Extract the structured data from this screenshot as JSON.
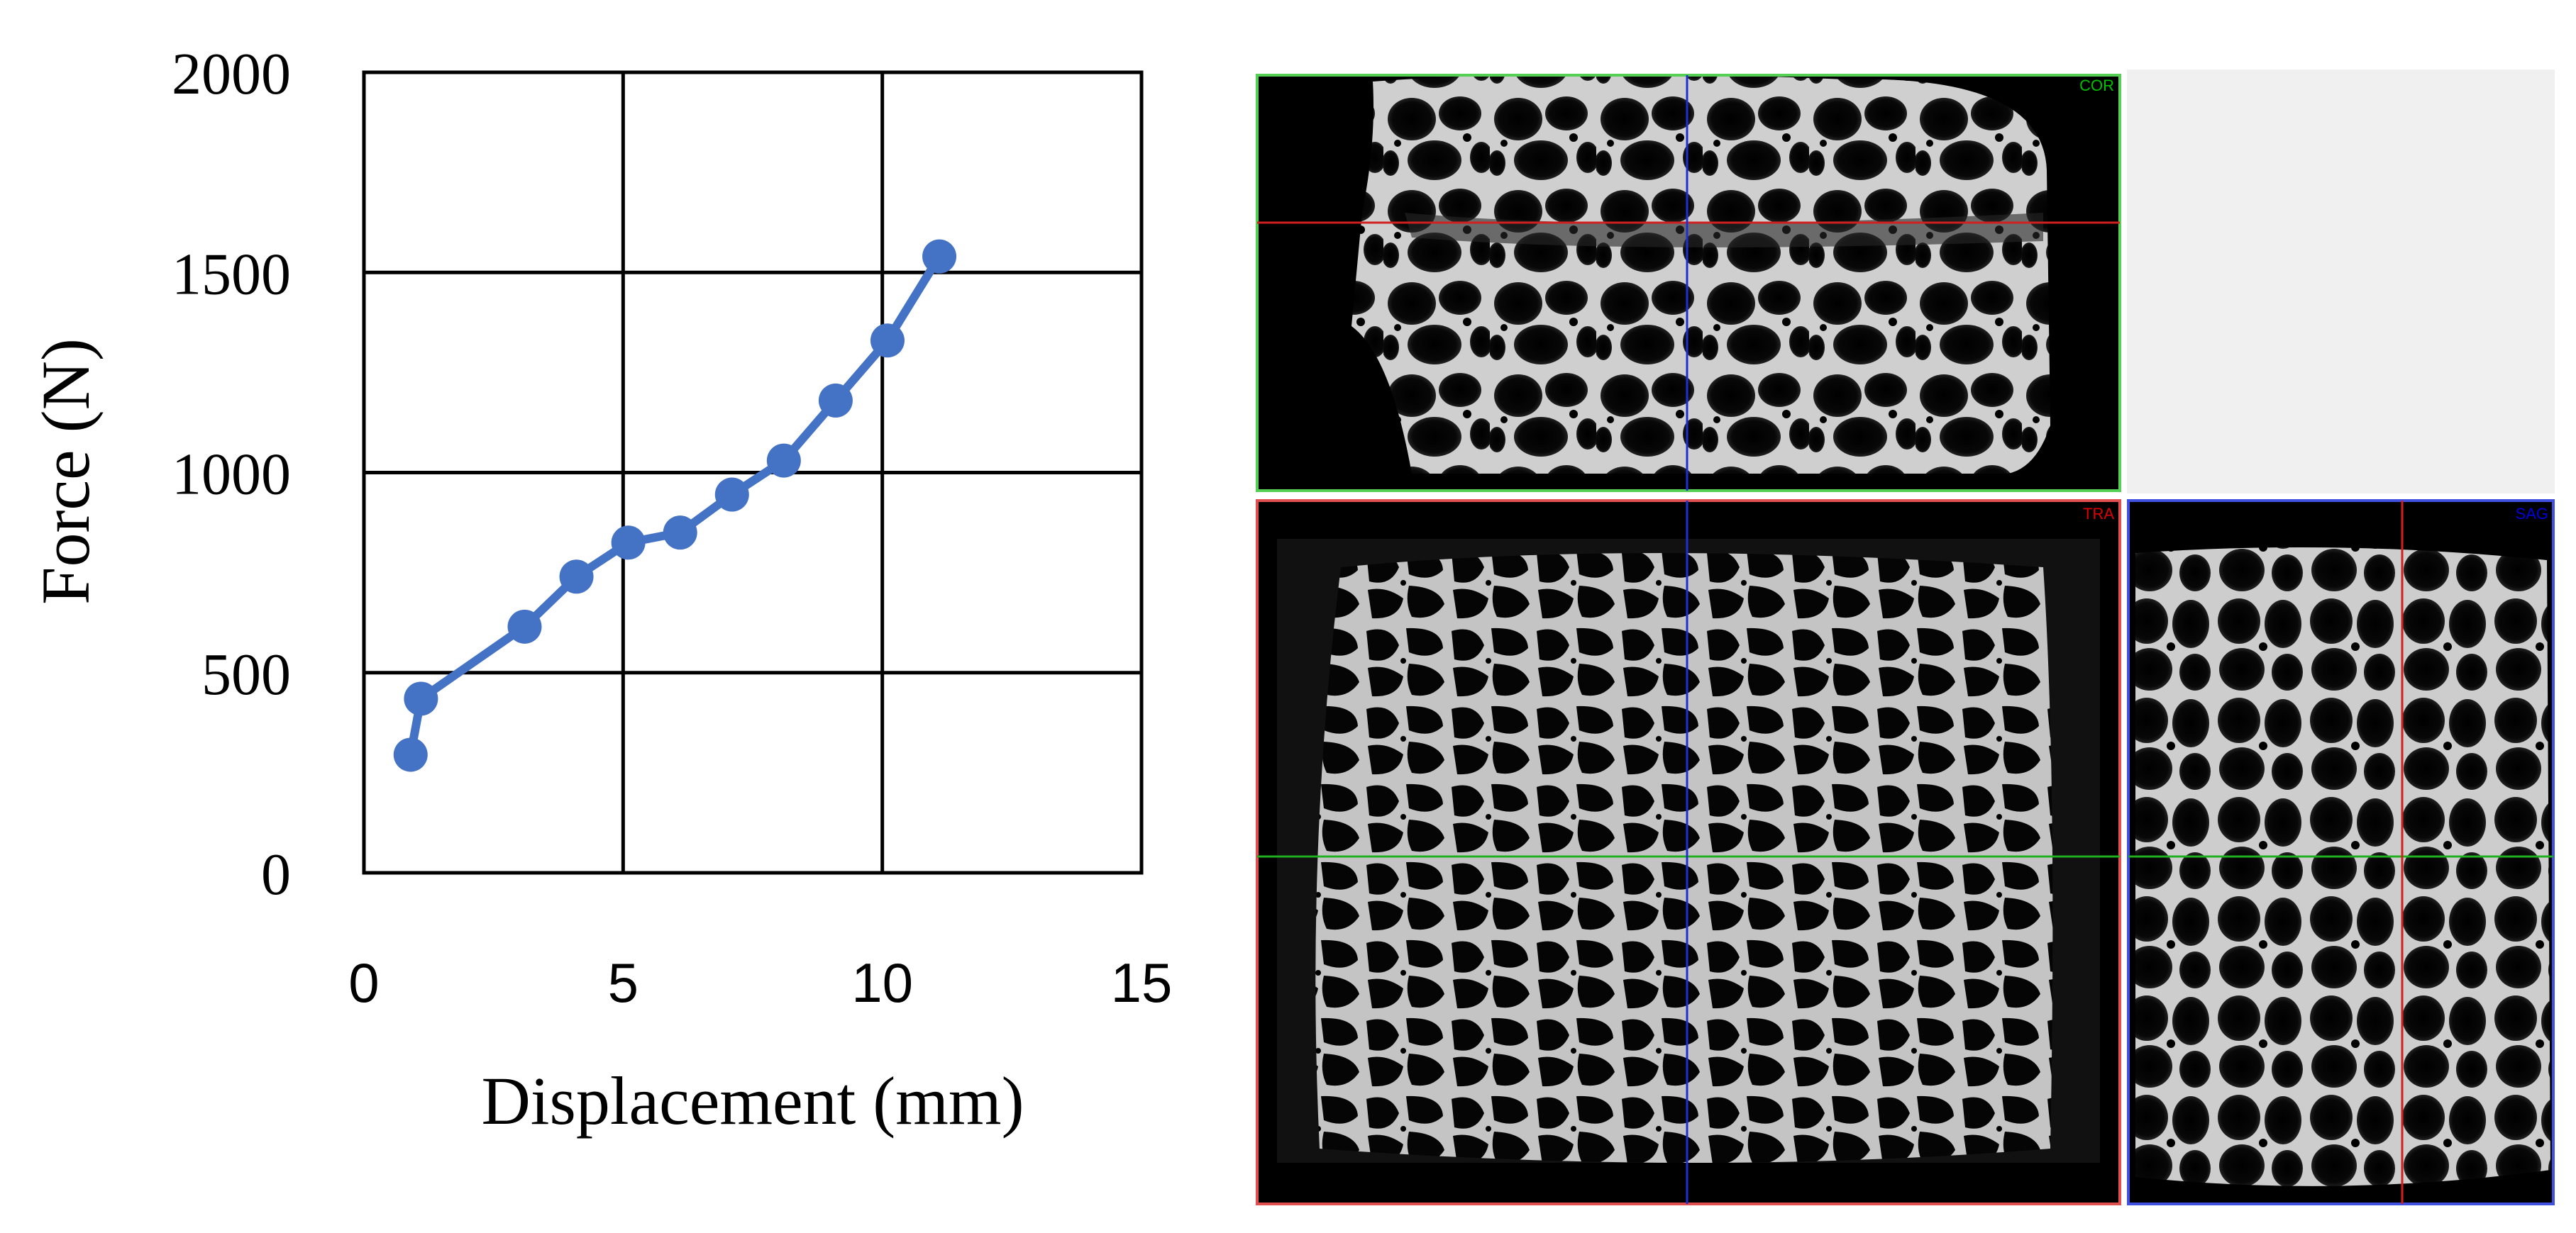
{
  "chart_data": {
    "type": "line",
    "title": "",
    "xlabel": "Displacement (mm)",
    "ylabel": "Force (N)",
    "xlim": [
      0,
      15
    ],
    "ylim": [
      0,
      2000
    ],
    "x_ticks": [
      "0",
      "5",
      "10",
      "15"
    ],
    "y_ticks": [
      "0",
      "500",
      "1000",
      "1500",
      "2000"
    ],
    "grid": true,
    "legend": "none",
    "series": [
      {
        "color": "#4472c4",
        "x": [
          0.9,
          1.1,
          3.1,
          4.1,
          5.1,
          6.1,
          7.1,
          8.1,
          9.1,
          10.1,
          11.1
        ],
        "y": [
          295,
          435,
          615,
          740,
          825,
          850,
          945,
          1030,
          1180,
          1330,
          1540
        ]
      }
    ]
  },
  "ct_views": {
    "coronal_label": "COR",
    "transverse_label": "TRA",
    "sagittal_label": "SAG",
    "coronal_color": "#00c000",
    "transverse_color": "#e00000",
    "sagittal_color": "#0000e0"
  }
}
